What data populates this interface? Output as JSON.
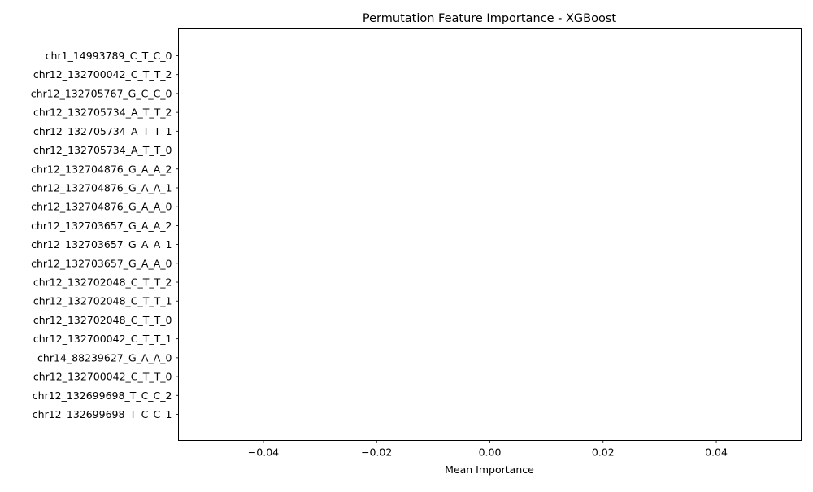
{
  "chart_data": {
    "type": "bar",
    "orientation": "horizontal",
    "title": "Permutation Feature Importance - XGBoost",
    "xlabel": "Mean Importance",
    "ylabel": "",
    "xlim": [
      -0.055,
      0.055
    ],
    "x_ticks": [
      -0.04,
      -0.02,
      0.0,
      0.02,
      0.04
    ],
    "x_tick_labels": [
      "−0.04",
      "−0.02",
      "0.00",
      "0.02",
      "0.04"
    ],
    "grid": false,
    "categories": [
      "chr1_14993789_C_T_C_0",
      "chr12_132700042_C_T_T_2",
      "chr12_132705767_G_C_C_0",
      "chr12_132705734_A_T_T_2",
      "chr12_132705734_A_T_T_1",
      "chr12_132705734_A_T_T_0",
      "chr12_132704876_G_A_A_2",
      "chr12_132704876_G_A_A_1",
      "chr12_132704876_G_A_A_0",
      "chr12_132703657_G_A_A_2",
      "chr12_132703657_G_A_A_1",
      "chr12_132703657_G_A_A_0",
      "chr12_132702048_C_T_T_2",
      "chr12_132702048_C_T_T_1",
      "chr12_132702048_C_T_T_0",
      "chr12_132700042_C_T_T_1",
      "chr14_88239627_G_A_A_0",
      "chr12_132700042_C_T_T_0",
      "chr12_132699698_T_C_C_2",
      "chr12_132699698_T_C_C_1"
    ],
    "values": [
      0,
      0,
      0,
      0,
      0,
      0,
      0,
      0,
      0,
      0,
      0,
      0,
      0,
      0,
      0,
      0,
      0,
      0,
      0,
      0
    ],
    "bar_color": "#1f77b4"
  }
}
